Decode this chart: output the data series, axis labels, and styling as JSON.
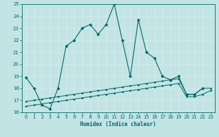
{
  "xlabel": "Humidex (Indice chaleur)",
  "xlim": [
    -0.5,
    23.5
  ],
  "ylim": [
    16,
    25
  ],
  "yticks": [
    16,
    17,
    18,
    19,
    20,
    21,
    22,
    23,
    24,
    25
  ],
  "xticks": [
    0,
    1,
    2,
    3,
    4,
    5,
    6,
    7,
    8,
    9,
    10,
    11,
    12,
    13,
    14,
    15,
    16,
    17,
    18,
    19,
    20,
    21,
    22,
    23
  ],
  "bg_color": "#c2e4e4",
  "line_color": "#006666",
  "grid_color": "#e0f0f0",
  "line1_x": [
    0,
    1,
    2,
    3,
    4,
    5,
    6,
    7,
    8,
    9,
    10,
    11,
    12,
    13,
    14,
    15,
    16,
    17,
    18,
    19,
    20,
    21,
    22
  ],
  "line1_y": [
    18.9,
    18.0,
    16.6,
    16.3,
    18.0,
    21.5,
    22.0,
    23.0,
    23.3,
    22.5,
    23.3,
    25.0,
    22.0,
    19.0,
    23.7,
    21.0,
    20.5,
    19.0,
    18.7,
    19.0,
    17.5,
    17.5,
    18.0
  ],
  "line2_x": [
    0,
    1,
    2,
    3,
    4,
    5,
    6,
    7,
    8,
    9,
    10,
    11,
    12,
    13,
    14,
    15,
    16,
    17,
    18,
    19,
    20,
    21,
    22,
    23
  ],
  "line2_y": [
    16.9,
    17.0,
    17.1,
    17.2,
    17.3,
    17.4,
    17.5,
    17.6,
    17.7,
    17.8,
    17.9,
    18.0,
    18.1,
    18.2,
    18.3,
    18.4,
    18.5,
    18.6,
    18.7,
    18.8,
    17.5,
    17.5,
    18.0,
    18.0
  ],
  "line3_x": [
    0,
    1,
    2,
    3,
    4,
    5,
    6,
    7,
    8,
    9,
    10,
    11,
    12,
    13,
    14,
    15,
    16,
    17,
    18,
    19,
    20,
    21,
    22,
    23
  ],
  "line3_y": [
    16.5,
    16.6,
    16.7,
    16.8,
    16.9,
    17.0,
    17.1,
    17.2,
    17.3,
    17.4,
    17.5,
    17.6,
    17.7,
    17.8,
    17.9,
    18.0,
    18.1,
    18.2,
    18.3,
    18.4,
    17.3,
    17.3,
    17.5,
    17.8
  ]
}
